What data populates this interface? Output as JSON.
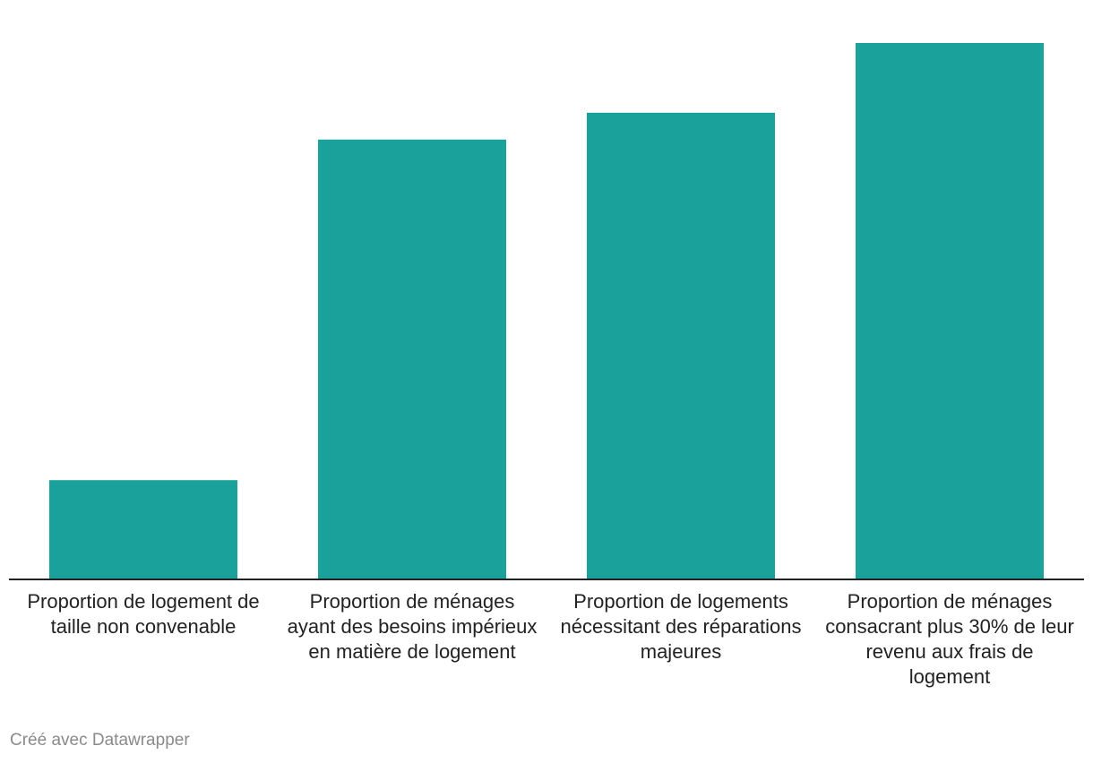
{
  "chart_data": {
    "type": "bar",
    "categories": [
      "Proportion de logement de taille non convenable",
      "Proportion de ménages ayant des besoins impérieux en matière de logement",
      "Proportion de logements nécessitant des réparations majeures",
      "Proportion de ménages consacrant plus 30% de leur revenu aux frais de logement"
    ],
    "values": [
      18.5,
      82.0,
      87.0,
      100.0
    ],
    "ylim": [
      0,
      100
    ],
    "grid": false,
    "bar_color": "#1aa19c",
    "axis_color": "#222222"
  },
  "footer": {
    "credit": "Créé avec Datawrapper"
  }
}
